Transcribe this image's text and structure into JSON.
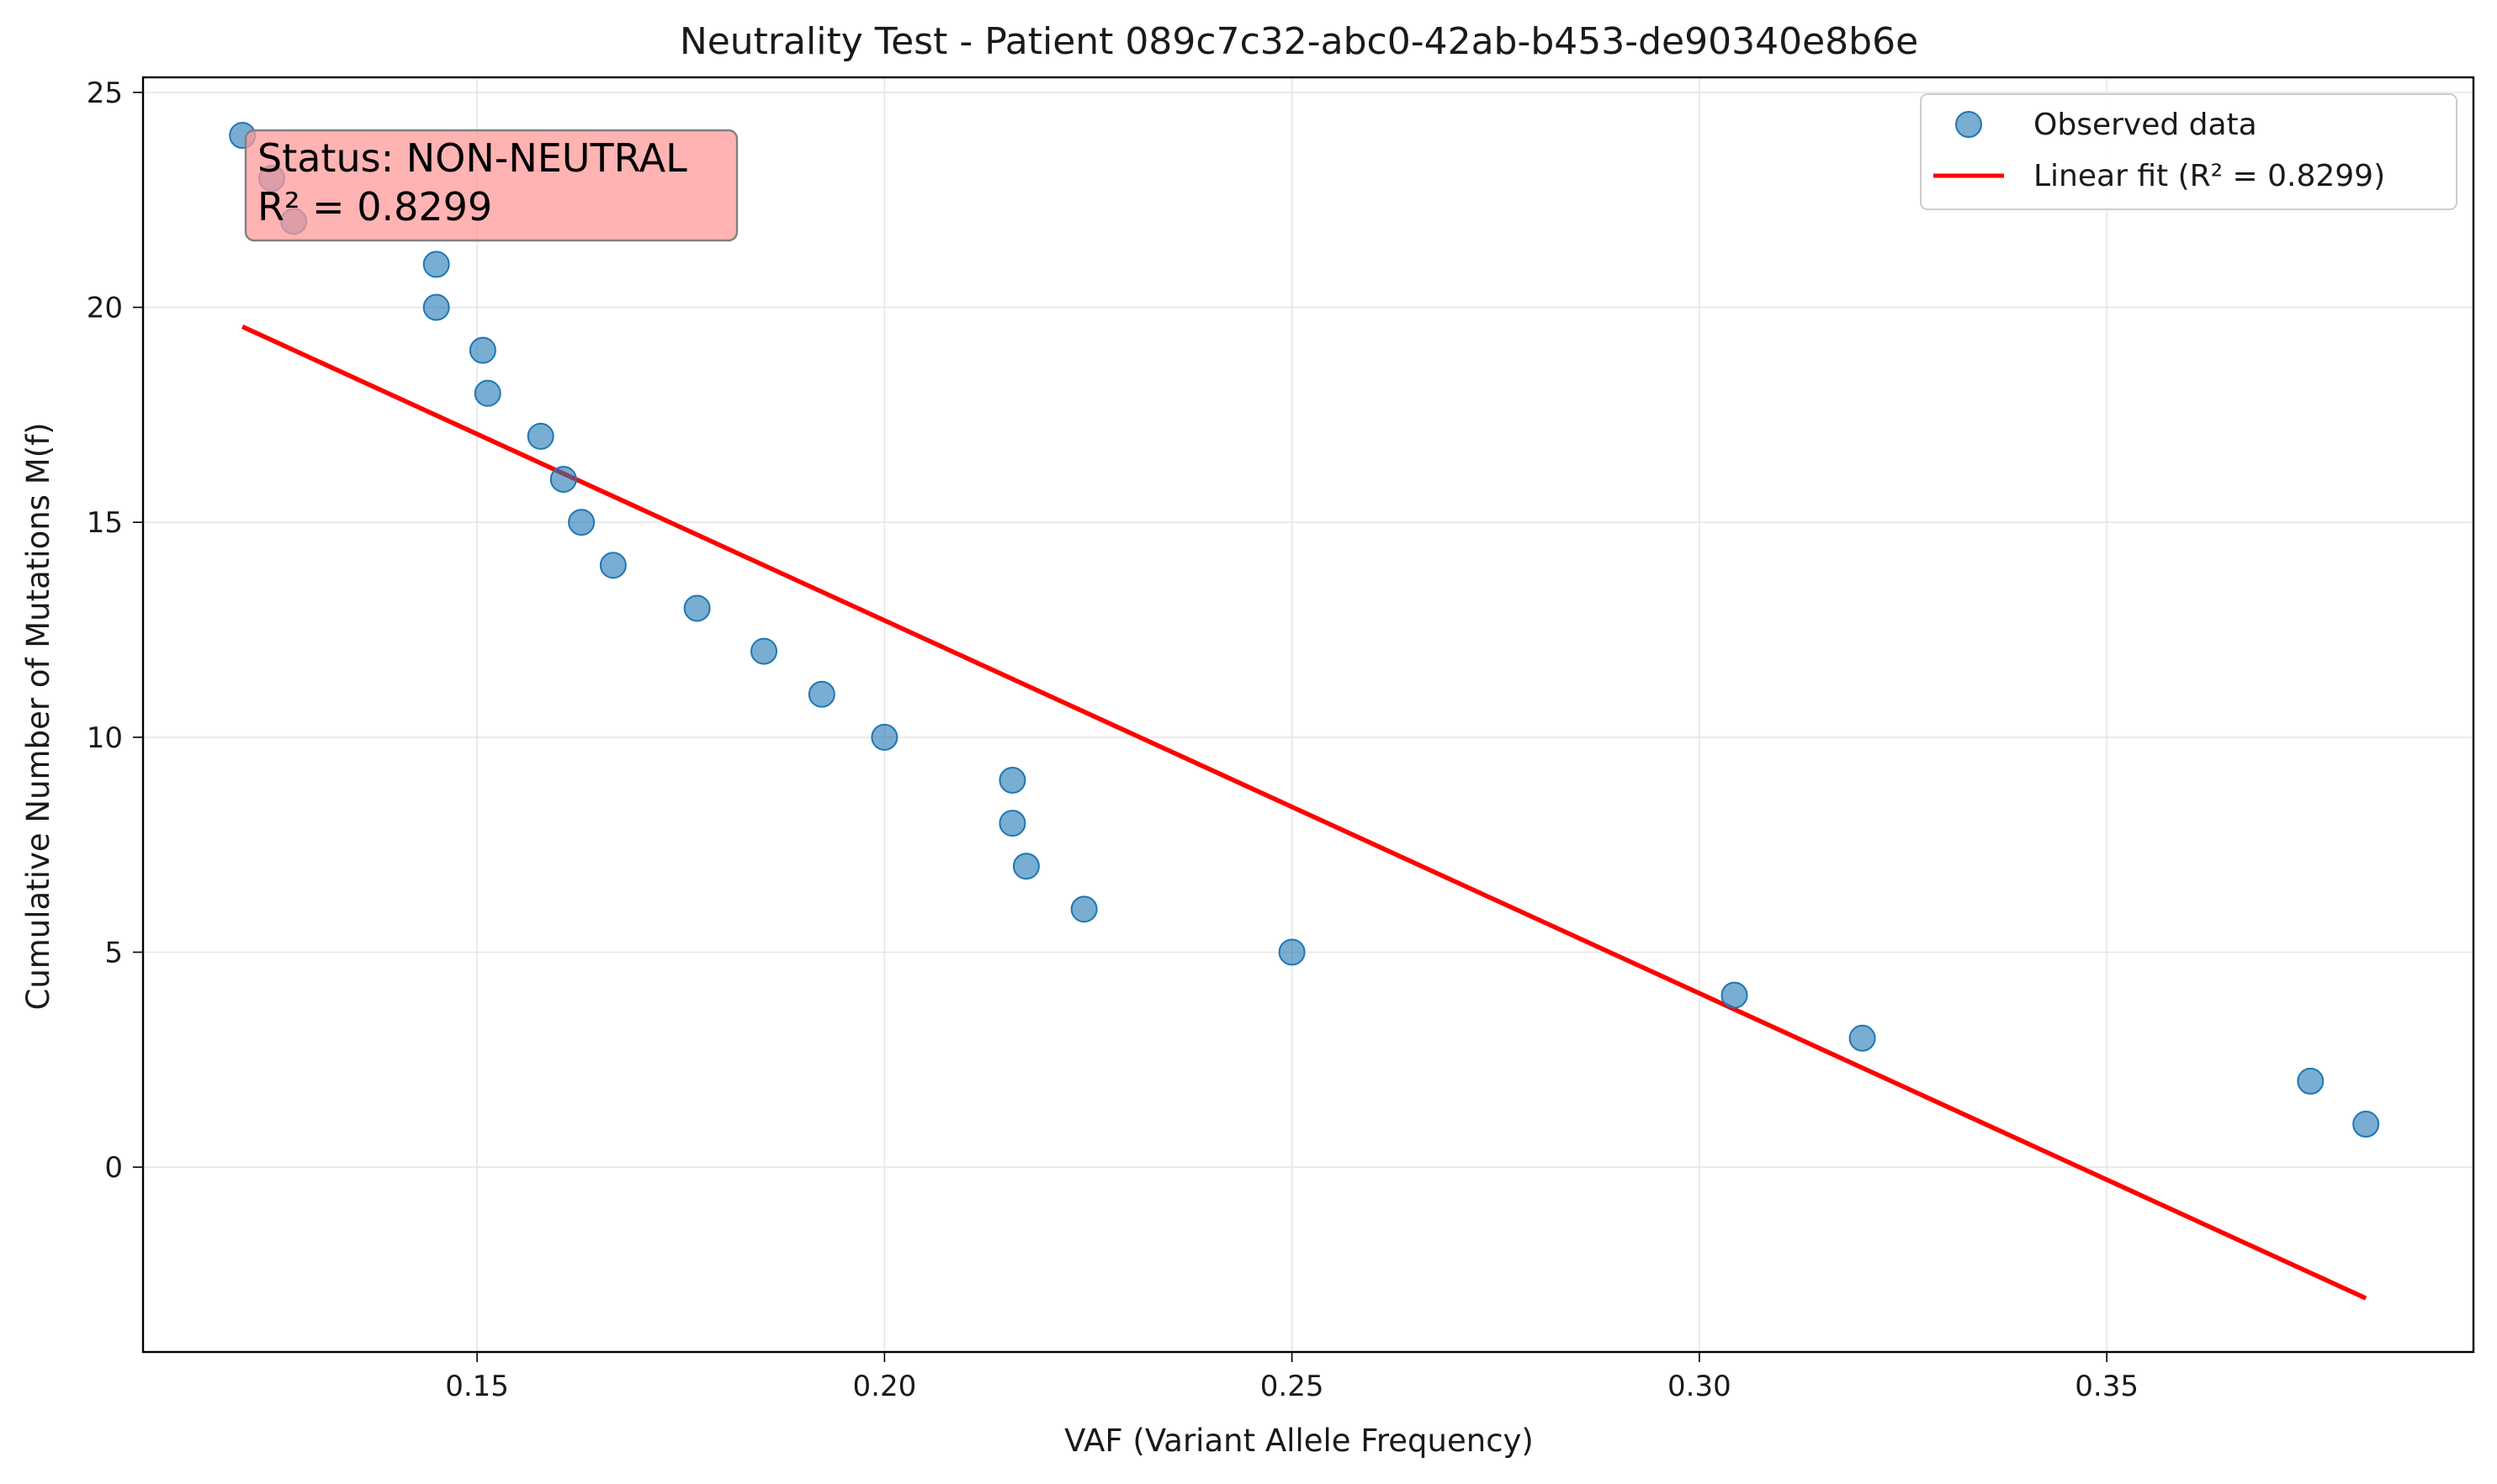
{
  "chart_data": {
    "type": "scatter",
    "title": "Neutrality Test - Patient 089c7c32-abc0-42ab-b453-de90340e8b6e",
    "xlabel": "VAF (Variant Allele Frequency)",
    "ylabel": "Cumulative Number of Mutations M(f)",
    "xlim": [
      0.109,
      0.395
    ],
    "ylim": [
      -4.3,
      25.35
    ],
    "xticks": [
      0.15,
      0.2,
      0.25,
      0.3,
      0.35
    ],
    "xtick_labels": [
      "0.15",
      "0.20",
      "0.25",
      "0.30",
      "0.35"
    ],
    "yticks": [
      0,
      5,
      10,
      15,
      20,
      25
    ],
    "ytick_labels": [
      "0",
      "5",
      "10",
      "15",
      "20",
      "25"
    ],
    "grid": true,
    "legend_position": "top-right",
    "series": [
      {
        "name": "Observed data",
        "kind": "scatter",
        "color": "#1f77b4",
        "x": [
          0.1212,
          0.1248,
          0.1275,
          0.145,
          0.145,
          0.1507,
          0.1513,
          0.1578,
          0.1606,
          0.1628,
          0.1667,
          0.177,
          0.1852,
          0.1923,
          0.2,
          0.2157,
          0.2157,
          0.2174,
          0.2245,
          0.25,
          0.3043,
          0.32,
          0.375,
          0.3818
        ],
        "y": [
          24,
          23,
          22,
          21,
          20,
          19,
          18,
          17,
          16,
          15,
          14,
          13,
          12,
          11,
          10,
          9,
          8,
          7,
          6,
          5,
          4,
          3,
          2,
          1
        ]
      },
      {
        "name": "Linear fit (R² = 0.8299)",
        "kind": "line",
        "color": "#ff0000",
        "x": [
          0.1212,
          0.3818
        ],
        "y": [
          19.55,
          -3.05
        ]
      }
    ],
    "annotation": {
      "lines": [
        "Status: NON-NEUTRAL",
        "R² = 0.8299"
      ],
      "background": "#ff9999",
      "position": "top-left"
    }
  }
}
